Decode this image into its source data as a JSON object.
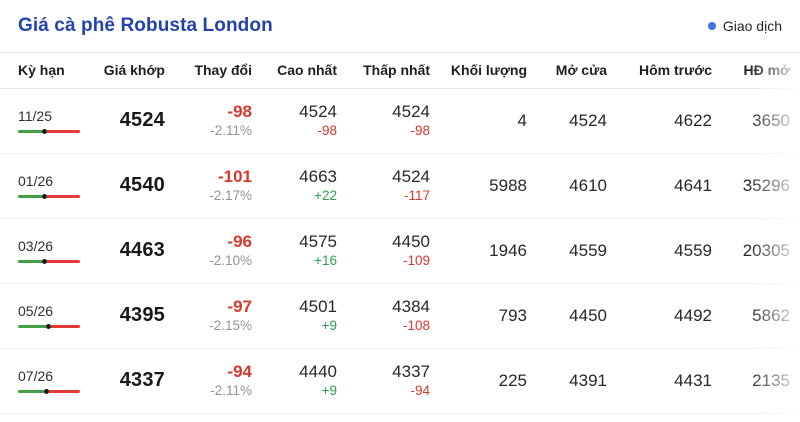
{
  "header": {
    "title": "Giá cà phê Robusta London",
    "legend_label": "Giao dịch"
  },
  "colors": {
    "title_blue": "#2442ab",
    "legend_dot_blue": "#3d74e0",
    "negative_red": "#d7382d",
    "positive_green": "#2e9e4f",
    "muted_gray": "#8e949e",
    "gauge_green": "#43a047",
    "gauge_red": "#e53935"
  },
  "table": {
    "columns": [
      "Kỳ hạn",
      "Giá khớp",
      "Thay đổi",
      "Cao nhất",
      "Thấp nhất",
      "Khối lượng",
      "Mở cửa",
      "Hôm trước",
      "HĐ mở"
    ],
    "rows": [
      {
        "term": "11/25",
        "gauge_percent": 38,
        "last_price": "4524",
        "change": "-98",
        "change_percent": "-2.11%",
        "high": "4524",
        "high_change": "-98",
        "low": "4524",
        "low_change": "-98",
        "volume": "4",
        "open": "4524",
        "prev": "4622",
        "open_interest": "3650"
      },
      {
        "term": "01/26",
        "gauge_percent": 38,
        "last_price": "4540",
        "change": "-101",
        "change_percent": "-2.17%",
        "high": "4663",
        "high_change": "+22",
        "low": "4524",
        "low_change": "-117",
        "volume": "5988",
        "open": "4610",
        "prev": "4641",
        "open_interest": "35296"
      },
      {
        "term": "03/26",
        "gauge_percent": 38,
        "last_price": "4463",
        "change": "-96",
        "change_percent": "-2.10%",
        "high": "4575",
        "high_change": "+16",
        "low": "4450",
        "low_change": "-109",
        "volume": "1946",
        "open": "4559",
        "prev": "4559",
        "open_interest": "20305"
      },
      {
        "term": "05/26",
        "gauge_percent": 45,
        "last_price": "4395",
        "change": "-97",
        "change_percent": "-2.15%",
        "high": "4501",
        "high_change": "+9",
        "low": "4384",
        "low_change": "-108",
        "volume": "793",
        "open": "4450",
        "prev": "4492",
        "open_interest": "5862"
      },
      {
        "term": "07/26",
        "gauge_percent": 42,
        "last_price": "4337",
        "change": "-94",
        "change_percent": "-2.11%",
        "high": "4440",
        "high_change": "+9",
        "low": "4337",
        "low_change": "-94",
        "volume": "225",
        "open": "4391",
        "prev": "4431",
        "open_interest": "2135"
      }
    ]
  }
}
